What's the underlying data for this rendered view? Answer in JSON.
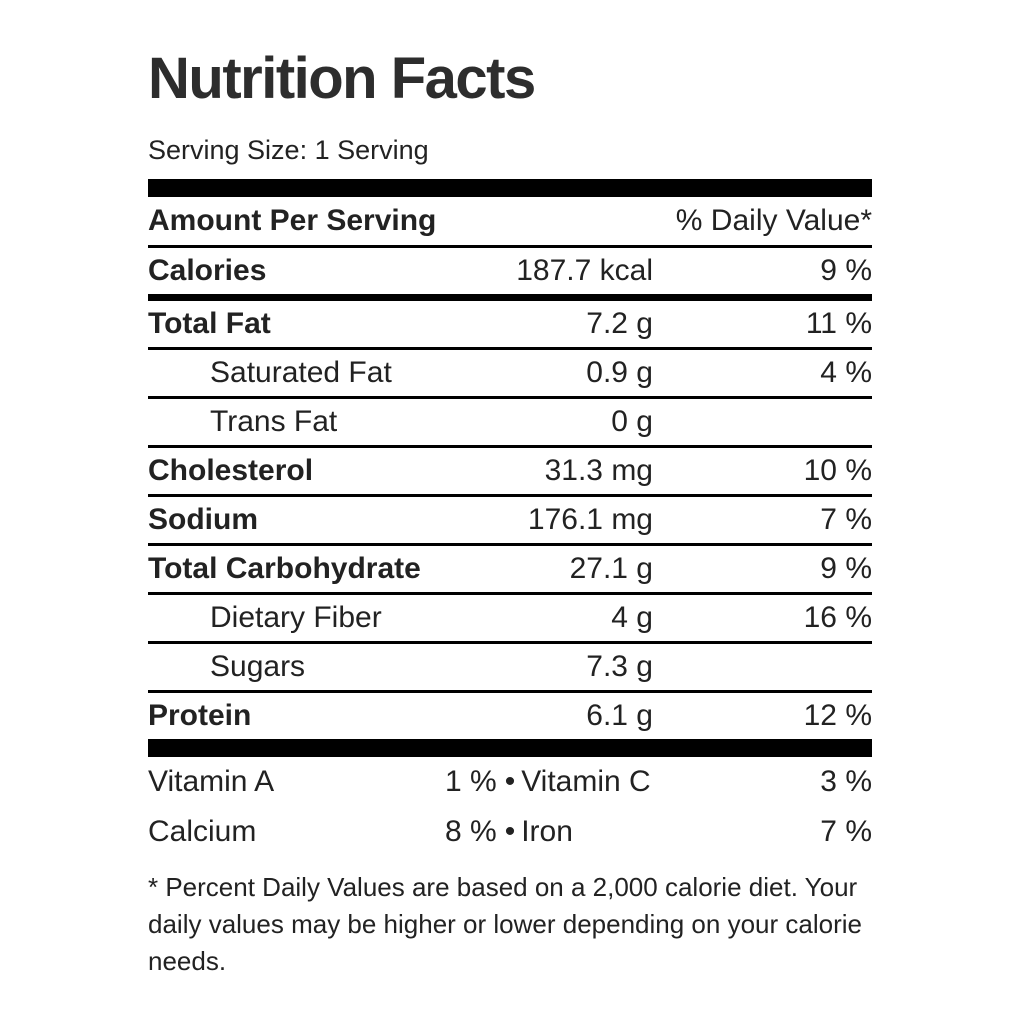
{
  "label": {
    "title": "Nutrition Facts",
    "serving_size": "Serving Size: 1 Serving",
    "header": {
      "amount_label": "Amount Per Serving",
      "dv_label": "% Daily Value*"
    },
    "nutrients": [
      {
        "name": "Calories",
        "amount": "187.7 kcal",
        "dv": "9 %",
        "style": "bold",
        "divider_after": "medium"
      },
      {
        "name": "Total Fat",
        "amount": "7.2 g",
        "dv": "11 %",
        "style": "bold",
        "divider_after": "thin"
      },
      {
        "name": "Saturated Fat",
        "amount": "0.9 g",
        "dv": "4 %",
        "style": "indent",
        "divider_after": "thin"
      },
      {
        "name": "Trans Fat",
        "amount": "0 g",
        "dv": "",
        "style": "indent",
        "divider_after": "thin"
      },
      {
        "name": "Cholesterol",
        "amount": "31.3 mg",
        "dv": "10 %",
        "style": "bold",
        "divider_after": "thin"
      },
      {
        "name": "Sodium",
        "amount": "176.1 mg",
        "dv": "7 %",
        "style": "bold",
        "divider_after": "thin"
      },
      {
        "name": "Total Carbohydrate",
        "amount": "27.1 g",
        "dv": "9 %",
        "style": "bold",
        "divider_after": "thin"
      },
      {
        "name": "Dietary Fiber",
        "amount": "4 g",
        "dv": "16 %",
        "style": "indent",
        "divider_after": "thin"
      },
      {
        "name": "Sugars",
        "amount": "7.3 g",
        "dv": "",
        "style": "indent",
        "divider_after": "thin"
      },
      {
        "name": "Protein",
        "amount": "6.1 g",
        "dv": "12 %",
        "style": "bold",
        "divider_after": "none"
      }
    ],
    "micronutrients": [
      {
        "name": "Vitamin A",
        "value": "1 %",
        "separator": "•",
        "name2": "Vitamin C",
        "value2": "3 %",
        "divider_after": "thin"
      },
      {
        "name": "Calcium",
        "value": "8 %",
        "separator": "•",
        "name2": "Iron",
        "value2": "7 %",
        "divider_after": "bottom"
      }
    ],
    "footnote": "* Percent Daily Values are based on a 2,000 calorie diet. Your daily values may be higher or lower depending on your calorie needs.",
    "colors": {
      "text": "#222222",
      "rule": "#000000",
      "background": "#ffffff"
    }
  }
}
